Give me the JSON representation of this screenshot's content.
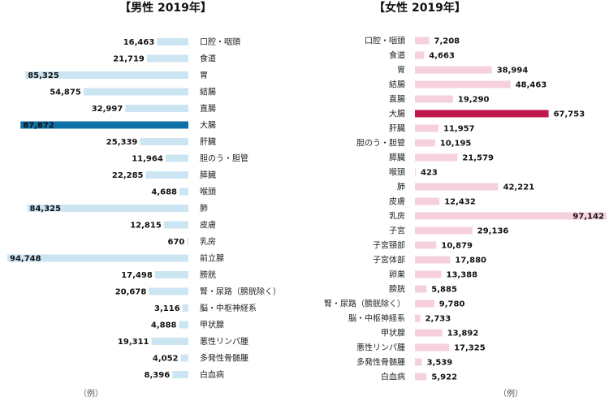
{
  "chart_data": [
    {
      "type": "bar",
      "orientation": "horizontal",
      "direction": "right-to-left",
      "title": "【男性 2019年】",
      "note": "（例）",
      "colors": {
        "bar": "#cce5f3",
        "highlight": "#1071a8"
      },
      "highlight_index": 5,
      "xlim": [
        0,
        100000
      ],
      "categories": [
        "口腔・咽頭",
        "食道",
        "胃",
        "結腸",
        "直腸",
        "大腸",
        "肝臓",
        "胆のう・胆管",
        "膵臓",
        "喉頭",
        "肺",
        "皮膚",
        "乳房",
        "前立腺",
        "膀胱",
        "腎・尿路（膀胱除く）",
        "脳・中枢神経系",
        "甲状腺",
        "悪性リンパ腫",
        "多発性骨髄腫",
        "白血病"
      ],
      "values": [
        16463,
        21719,
        85325,
        54875,
        32997,
        87872,
        25339,
        11964,
        22285,
        4688,
        84325,
        12815,
        670,
        94748,
        17498,
        20678,
        3116,
        4888,
        19311,
        4052,
        8396
      ],
      "value_labels": [
        "16,463",
        "21,719",
        "85,325",
        "54,875",
        "32,997",
        "87,872",
        "25,339",
        "11,964",
        "22,285",
        "4,688",
        "84,325",
        "12,815",
        "670",
        "94,748",
        "17,498",
        "20,678",
        "3,116",
        "4,888",
        "19,311",
        "4,052",
        "8,396"
      ]
    },
    {
      "type": "bar",
      "orientation": "horizontal",
      "direction": "left-to-right",
      "title": "【女性 2019年】",
      "note": "（例）",
      "colors": {
        "bar": "#f6d0de",
        "highlight": "#c0174d"
      },
      "highlight_index": 5,
      "xlim": [
        0,
        100000
      ],
      "categories": [
        "口腔・咽頭",
        "食道",
        "胃",
        "結腸",
        "直腸",
        "大腸",
        "肝臓",
        "胆のう・胆管",
        "膵臓",
        "喉頭",
        "肺",
        "皮膚",
        "乳房",
        "子宮",
        "子宮頸部",
        "子宮体部",
        "卵巣",
        "膀胱",
        "腎・尿路（膀胱除く）",
        "脳・中枢神経系",
        "甲状腺",
        "悪性リンパ腫",
        "多発性骨髄腫",
        "白血病"
      ],
      "values": [
        7208,
        4663,
        38994,
        48463,
        19290,
        67753,
        11957,
        10195,
        21579,
        423,
        42221,
        12432,
        97142,
        29136,
        10879,
        17880,
        13388,
        5885,
        9780,
        2733,
        13892,
        17325,
        3539,
        5922
      ],
      "value_labels": [
        "7,208",
        "4,663",
        "38,994",
        "48,463",
        "19,290",
        "67,753",
        "11,957",
        "10,195",
        "21,579",
        "423",
        "42,221",
        "12,432",
        "97,142",
        "29,136",
        "10,879",
        "17,880",
        "13,388",
        "5,885",
        "9,780",
        "2,733",
        "13,892",
        "17,325",
        "3,539",
        "5,922"
      ]
    }
  ]
}
